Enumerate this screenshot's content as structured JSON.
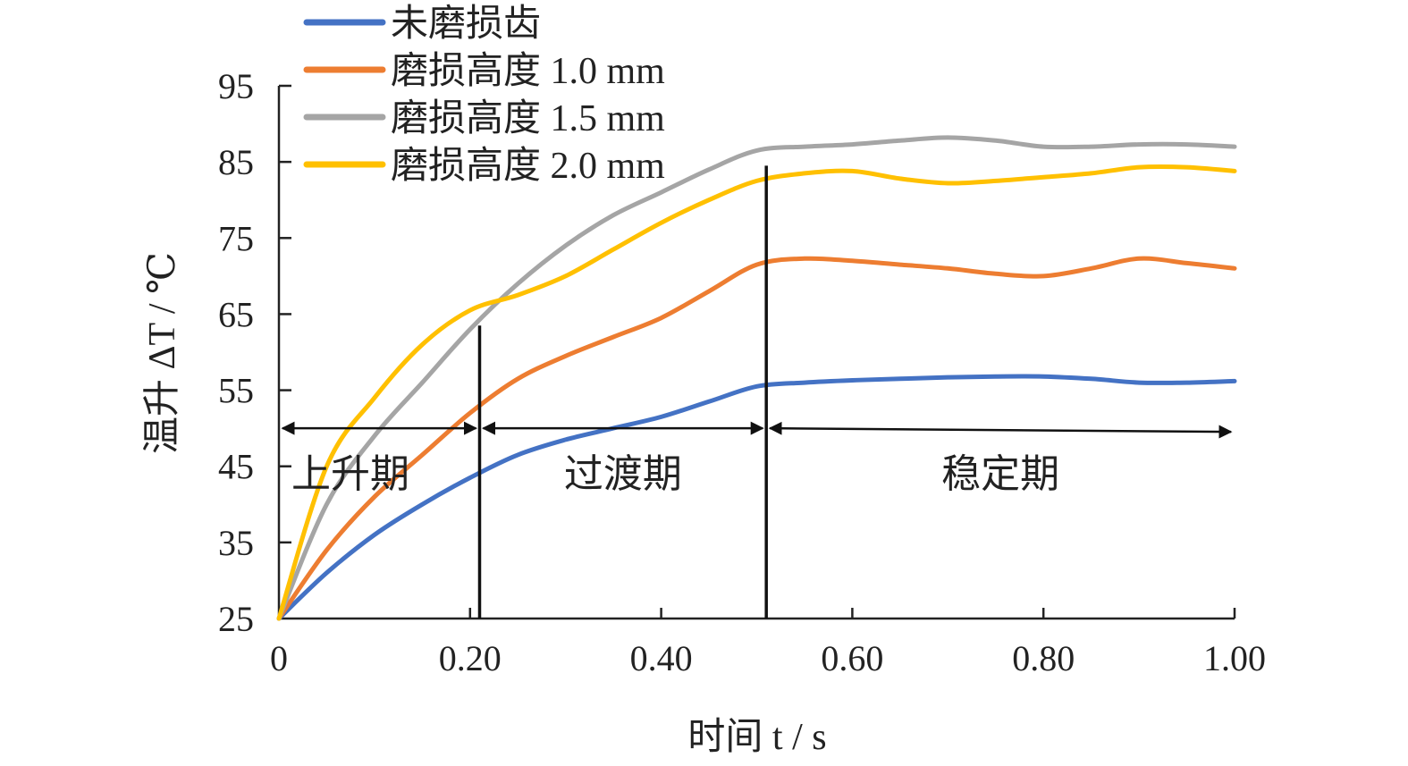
{
  "chart_data": {
    "type": "line",
    "xlabel": "时间 t / s",
    "ylabel": "温升 ΔT / ℃",
    "xlim": [
      0,
      1.0
    ],
    "ylim": [
      25,
      95
    ],
    "x_ticks": [
      "0",
      "0.20",
      "0.40",
      "0.60",
      "0.80",
      "1.00"
    ],
    "x_tick_values": [
      0,
      0.2,
      0.4,
      0.6,
      0.8,
      1.0
    ],
    "y_ticks": [
      "25",
      "35",
      "45",
      "55",
      "65",
      "75",
      "85",
      "95"
    ],
    "y_tick_values": [
      25,
      35,
      45,
      55,
      65,
      75,
      85,
      95
    ],
    "grid": false,
    "legend_position": "top-left",
    "x": [
      0,
      0.05,
      0.1,
      0.15,
      0.2,
      0.25,
      0.3,
      0.35,
      0.4,
      0.45,
      0.5,
      0.55,
      0.6,
      0.65,
      0.7,
      0.75,
      0.8,
      0.85,
      0.9,
      0.95,
      1.0
    ],
    "series": [
      {
        "name": "未磨损齿",
        "color": "#4472C4",
        "values": [
          25,
          31,
          36,
          40,
          43.5,
          46.5,
          48.5,
          50,
          51.5,
          53.5,
          55.5,
          56,
          56.3,
          56.5,
          56.7,
          56.8,
          56.8,
          56.5,
          56,
          56,
          56.2
        ]
      },
      {
        "name": "磨损高度 1.0 mm",
        "color": "#ED7D31",
        "values": [
          25,
          34,
          41,
          46.5,
          52,
          56.5,
          59.5,
          62,
          64.5,
          68,
          71.5,
          72.3,
          72,
          71.5,
          71,
          70.3,
          70,
          71,
          72.3,
          71.7,
          71
        ]
      },
      {
        "name": "磨损高度 1.5 mm",
        "color": "#A5A5A5",
        "values": [
          25,
          40,
          49,
          56,
          63,
          69,
          74,
          78,
          81,
          84,
          86.5,
          87,
          87.3,
          87.8,
          88.2,
          87.8,
          87,
          87,
          87.3,
          87.3,
          87
        ]
      },
      {
        "name": "磨损高度 2.0 mm",
        "color": "#FFC000",
        "values": [
          25,
          45,
          54,
          61,
          65.5,
          67.5,
          70,
          73.5,
          77,
          80,
          82.5,
          83.5,
          83.8,
          82.8,
          82.2,
          82.5,
          83,
          83.5,
          84.3,
          84.3,
          83.8
        ]
      }
    ],
    "phase_dividers": [
      0.21,
      0.51
    ],
    "phases": [
      {
        "label": "上升期",
        "x_start": 0,
        "x_end": 0.21
      },
      {
        "label": "过渡期",
        "x_start": 0.21,
        "x_end": 0.51
      },
      {
        "label": "稳定期",
        "x_start": 0.51,
        "x_end": 1.0
      }
    ],
    "phase_arrow_y": 50
  }
}
